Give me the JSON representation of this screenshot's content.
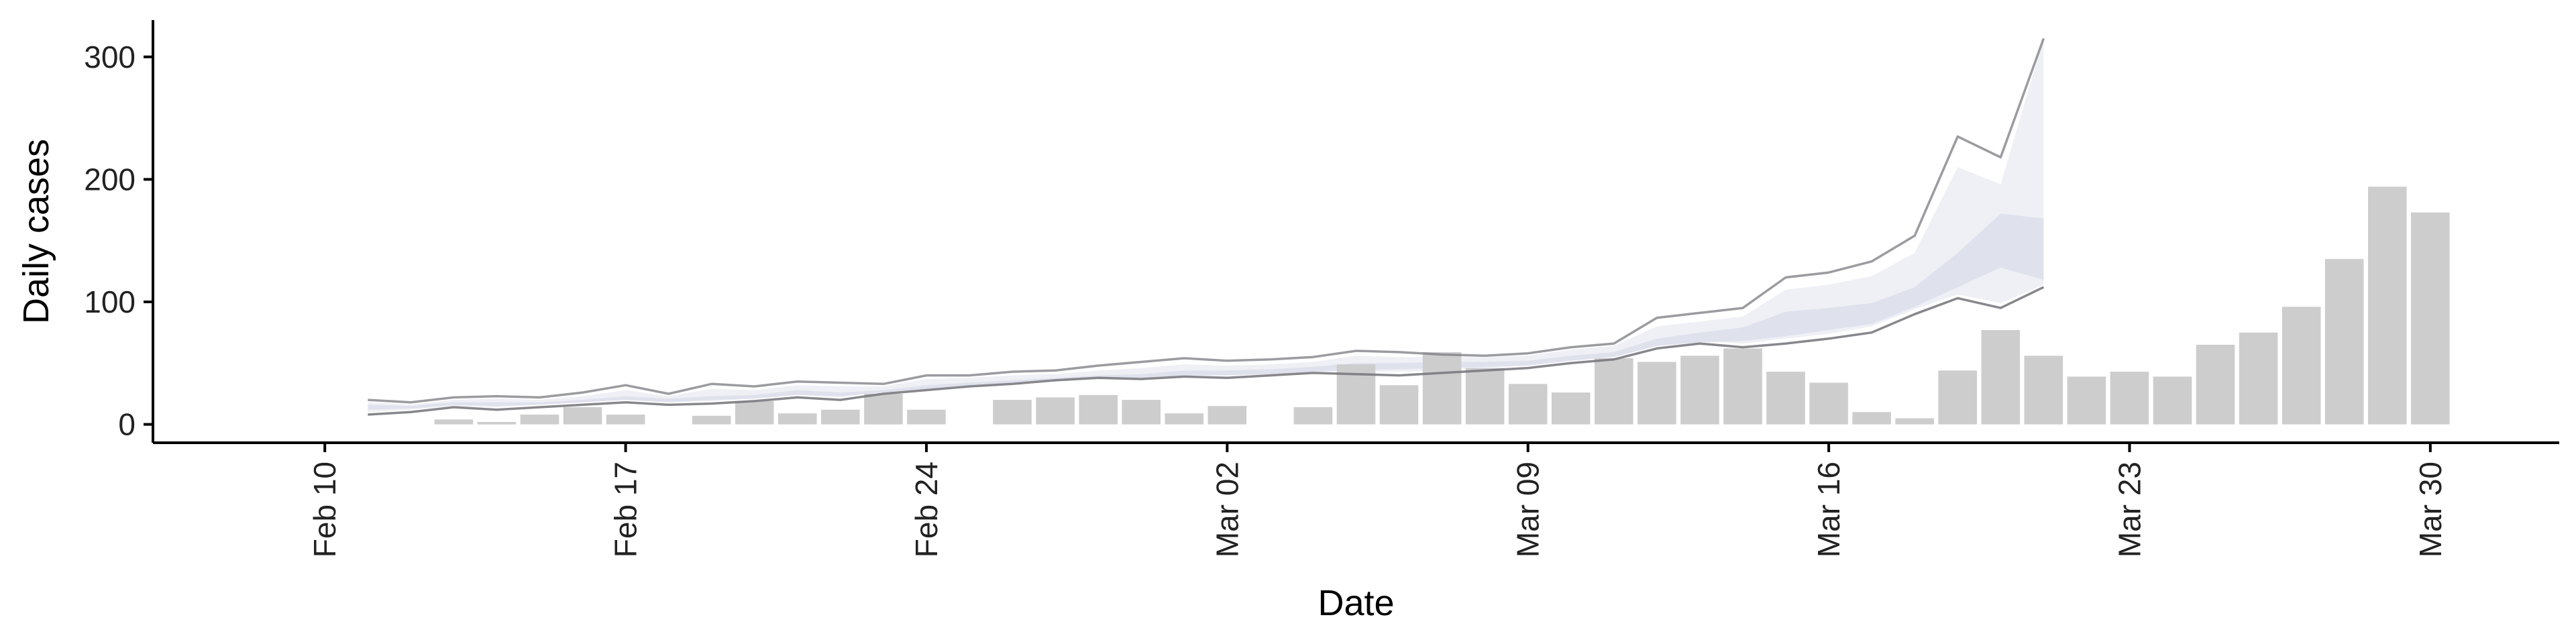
{
  "chart_data": {
    "type": "bar",
    "xlabel": "Date",
    "ylabel": "Daily cases",
    "y_ticks": [
      0,
      100,
      200,
      300
    ],
    "ylim": [
      -15,
      330
    ],
    "x_ticks": [
      {
        "date": "2020-02-10",
        "label": "Feb 10"
      },
      {
        "date": "2020-02-17",
        "label": "Feb 17"
      },
      {
        "date": "2020-02-24",
        "label": "Feb 24"
      },
      {
        "date": "2020-03-02",
        "label": "Mar 02"
      },
      {
        "date": "2020-03-09",
        "label": "Mar 09"
      },
      {
        "date": "2020-03-16",
        "label": "Mar 16"
      },
      {
        "date": "2020-03-23",
        "label": "Mar 23"
      },
      {
        "date": "2020-03-30",
        "label": "Mar 30"
      }
    ],
    "xlim": [
      "2020-02-06",
      "2020-04-02"
    ],
    "grid": false,
    "legend": "none",
    "bars": {
      "dates": [
        "2020-02-13",
        "2020-02-14",
        "2020-02-15",
        "2020-02-16",
        "2020-02-17",
        "2020-02-19",
        "2020-02-20",
        "2020-02-21",
        "2020-02-22",
        "2020-02-23",
        "2020-02-24",
        "2020-02-26",
        "2020-02-27",
        "2020-02-28",
        "2020-02-29",
        "2020-03-01",
        "2020-03-02",
        "2020-03-04",
        "2020-03-05",
        "2020-03-06",
        "2020-03-07",
        "2020-03-08",
        "2020-03-09",
        "2020-03-10",
        "2020-03-11",
        "2020-03-12",
        "2020-03-13",
        "2020-03-14",
        "2020-03-15",
        "2020-03-16",
        "2020-03-17",
        "2020-03-18",
        "2020-03-19",
        "2020-03-20",
        "2020-03-21",
        "2020-03-22",
        "2020-03-23",
        "2020-03-24",
        "2020-03-25",
        "2020-03-26",
        "2020-03-27",
        "2020-03-28",
        "2020-03-29",
        "2020-03-30"
      ],
      "values": [
        4,
        2,
        8,
        14,
        8,
        7,
        19,
        9,
        12,
        25,
        12,
        20,
        22,
        24,
        20,
        9,
        15,
        14,
        49,
        32,
        59,
        46,
        33,
        26,
        54,
        51,
        56,
        62,
        43,
        34,
        10,
        5,
        44,
        77,
        56,
        39,
        43,
        39,
        65,
        75,
        96,
        135,
        194,
        173
      ]
    },
    "upper_line": {
      "dates": [
        "2020-02-11",
        "2020-02-12",
        "2020-02-13",
        "2020-02-14",
        "2020-02-15",
        "2020-02-16",
        "2020-02-17",
        "2020-02-18",
        "2020-02-19",
        "2020-02-20",
        "2020-02-21",
        "2020-02-22",
        "2020-02-23",
        "2020-02-24",
        "2020-02-25",
        "2020-02-26",
        "2020-02-27",
        "2020-02-28",
        "2020-02-29",
        "2020-03-01",
        "2020-03-02",
        "2020-03-03",
        "2020-03-04",
        "2020-03-05",
        "2020-03-06",
        "2020-03-07",
        "2020-03-08",
        "2020-03-09",
        "2020-03-10",
        "2020-03-11",
        "2020-03-12",
        "2020-03-13",
        "2020-03-14",
        "2020-03-15",
        "2020-03-16",
        "2020-03-17",
        "2020-03-18",
        "2020-03-19",
        "2020-03-20",
        "2020-03-21"
      ],
      "values": [
        20,
        18,
        22,
        23,
        22,
        26,
        32,
        25,
        33,
        31,
        35,
        34,
        33,
        40,
        40,
        43,
        44,
        48,
        51,
        54,
        52,
        53,
        55,
        60,
        59,
        57,
        56,
        58,
        63,
        66,
        87,
        91,
        95,
        120,
        124,
        133,
        154,
        235,
        218,
        315
      ]
    },
    "lower_line": {
      "dates": [
        "2020-02-11",
        "2020-02-12",
        "2020-02-13",
        "2020-02-14",
        "2020-02-15",
        "2020-02-16",
        "2020-02-17",
        "2020-02-18",
        "2020-02-19",
        "2020-02-20",
        "2020-02-21",
        "2020-02-22",
        "2020-02-23",
        "2020-02-24",
        "2020-02-25",
        "2020-02-26",
        "2020-02-27",
        "2020-02-28",
        "2020-02-29",
        "2020-03-01",
        "2020-03-02",
        "2020-03-03",
        "2020-03-04",
        "2020-03-05",
        "2020-03-06",
        "2020-03-07",
        "2020-03-08",
        "2020-03-09",
        "2020-03-10",
        "2020-03-11",
        "2020-03-12",
        "2020-03-13",
        "2020-03-14",
        "2020-03-15",
        "2020-03-16",
        "2020-03-17",
        "2020-03-18",
        "2020-03-19",
        "2020-03-20",
        "2020-03-21"
      ],
      "values": [
        8,
        10,
        14,
        12,
        14,
        16,
        18,
        16,
        17,
        19,
        22,
        20,
        25,
        28,
        31,
        33,
        36,
        38,
        37,
        39,
        38,
        40,
        42,
        41,
        40,
        42,
        44,
        46,
        50,
        53,
        62,
        66,
        63,
        66,
        70,
        75,
        90,
        103,
        95,
        112
      ]
    },
    "band_outer": {
      "dates": [
        "2020-02-11",
        "2020-02-12",
        "2020-02-13",
        "2020-02-14",
        "2020-02-15",
        "2020-02-16",
        "2020-02-17",
        "2020-02-18",
        "2020-02-19",
        "2020-02-20",
        "2020-02-21",
        "2020-02-22",
        "2020-02-23",
        "2020-02-24",
        "2020-02-25",
        "2020-02-26",
        "2020-02-27",
        "2020-02-28",
        "2020-02-29",
        "2020-03-01",
        "2020-03-02",
        "2020-03-03",
        "2020-03-04",
        "2020-03-05",
        "2020-03-06",
        "2020-03-07",
        "2020-03-08",
        "2020-03-09",
        "2020-03-10",
        "2020-03-11",
        "2020-03-12",
        "2020-03-13",
        "2020-03-14",
        "2020-03-15",
        "2020-03-16",
        "2020-03-17",
        "2020-03-18",
        "2020-03-19",
        "2020-03-20",
        "2020-03-21"
      ],
      "upper": [
        18,
        16,
        20,
        21,
        20,
        23,
        28,
        23,
        29,
        28,
        32,
        31,
        31,
        37,
        38,
        40,
        41,
        44,
        46,
        49,
        48,
        49,
        51,
        56,
        55,
        55,
        55,
        56,
        61,
        64,
        80,
        84,
        88,
        110,
        114,
        121,
        140,
        210,
        196,
        315
      ],
      "lower": [
        10,
        12,
        15,
        14,
        16,
        18,
        20,
        18,
        19,
        21,
        24,
        22,
        27,
        30,
        33,
        35,
        38,
        40,
        39,
        41,
        41,
        42,
        44,
        43,
        43,
        44,
        46,
        48,
        52,
        55,
        64,
        68,
        66,
        70,
        74,
        80,
        94,
        106,
        99,
        114
      ]
    },
    "band_inner": {
      "dates": [
        "2020-02-11",
        "2020-02-12",
        "2020-02-13",
        "2020-02-14",
        "2020-02-15",
        "2020-02-16",
        "2020-02-17",
        "2020-02-18",
        "2020-02-19",
        "2020-02-20",
        "2020-02-21",
        "2020-02-22",
        "2020-02-23",
        "2020-02-24",
        "2020-02-25",
        "2020-02-26",
        "2020-02-27",
        "2020-02-28",
        "2020-02-29",
        "2020-03-01",
        "2020-03-02",
        "2020-03-03",
        "2020-03-04",
        "2020-03-05",
        "2020-03-06",
        "2020-03-07",
        "2020-03-08",
        "2020-03-09",
        "2020-03-10",
        "2020-03-11",
        "2020-03-12",
        "2020-03-13",
        "2020-03-14",
        "2020-03-15",
        "2020-03-16",
        "2020-03-17",
        "2020-03-18",
        "2020-03-19",
        "2020-03-20",
        "2020-03-21"
      ],
      "upper": [
        16,
        15,
        18,
        18,
        18,
        20,
        23,
        21,
        23,
        24,
        28,
        26,
        28,
        32,
        34,
        36,
        38,
        40,
        41,
        44,
        44,
        45,
        47,
        50,
        50,
        51,
        51,
        52,
        56,
        59,
        70,
        75,
        79,
        92,
        95,
        99,
        112,
        140,
        172,
        168
      ],
      "lower": [
        12,
        13,
        16,
        15,
        16,
        18,
        20,
        18,
        20,
        21,
        24,
        23,
        26,
        29,
        32,
        34,
        36,
        38,
        38,
        40,
        40,
        41,
        43,
        44,
        45,
        46,
        47,
        48,
        52,
        55,
        64,
        67,
        68,
        72,
        77,
        82,
        96,
        112,
        128,
        118
      ]
    },
    "colors": {
      "bars": "#cdcdcd",
      "lines": "#7a7a80",
      "band_outer": "#eef0f5",
      "band_inner": "#dfe2ed",
      "axis": "#000000"
    }
  }
}
